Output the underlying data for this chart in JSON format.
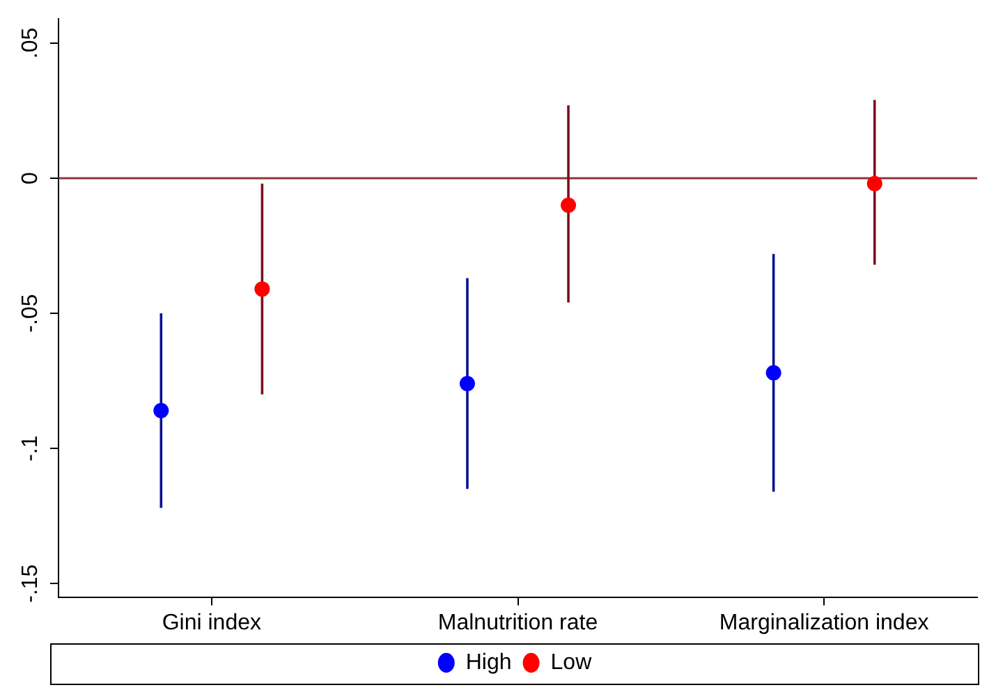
{
  "chart_data": {
    "type": "scatter",
    "categories": [
      "Gini index",
      "Malnutrition rate",
      "Marginalization index"
    ],
    "series": [
      {
        "name": "High",
        "color": "#0000ff",
        "values": [
          -0.086,
          -0.076,
          -0.072
        ],
        "errors": [
          [
            -0.122,
            -0.05
          ],
          [
            -0.115,
            -0.037
          ],
          [
            -0.116,
            -0.028
          ]
        ]
      },
      {
        "name": "Low",
        "color": "#ff0000",
        "values": [
          -0.041,
          -0.01,
          -0.002
        ],
        "errors": [
          [
            -0.08,
            -0.002
          ],
          [
            -0.046,
            0.027
          ],
          [
            -0.032,
            0.029
          ]
        ]
      }
    ],
    "ylim": [
      -0.155,
      0.059
    ],
    "yticks": [
      {
        "value": -0.15,
        "label": "-.15"
      },
      {
        "value": -0.1,
        "label": "-.1"
      },
      {
        "value": -0.05,
        "label": "-.05"
      },
      {
        "value": 0,
        "label": "0"
      },
      {
        "value": 0.05,
        "label": ".05"
      }
    ],
    "ref_lines": [
      {
        "axis": "y",
        "value": 0,
        "color": "#90353b"
      }
    ],
    "grid": false,
    "legend": "bottom",
    "marker": "circle"
  }
}
